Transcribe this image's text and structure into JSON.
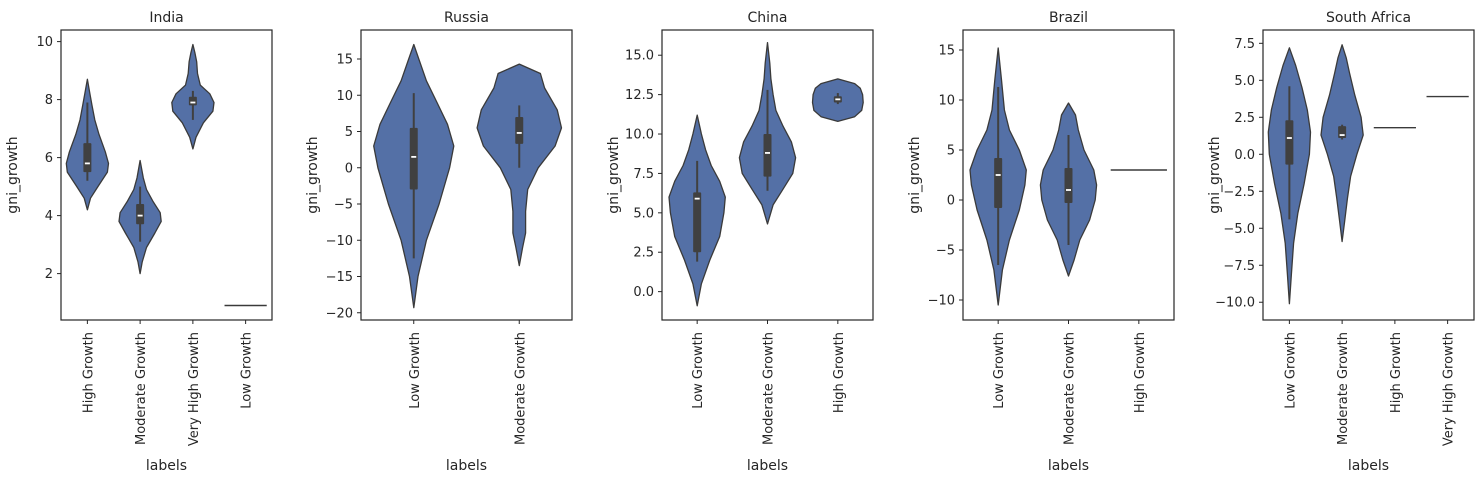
{
  "style": {
    "violin_fill": "#5470a6",
    "violin_edge": "#3a3a3a",
    "box_color": "#404040",
    "median_color": "#ffffff"
  },
  "chart_data": [
    {
      "type": "violin",
      "title": "India",
      "xlabel": "labels",
      "ylabel": "gni_growth",
      "ylim": [
        0.4,
        10.4
      ],
      "yticks": [
        2,
        4,
        6,
        8,
        10
      ],
      "ytick_labels": [
        "2",
        "4",
        "6",
        "8",
        "10"
      ],
      "categories": [
        "High Growth",
        "Moderate Growth",
        "Very High Growth",
        "Low Growth"
      ],
      "violins": [
        {
          "lo": 4.2,
          "hi": 8.7,
          "q1": 5.5,
          "median": 5.8,
          "q3": 6.5,
          "wlo": 5.2,
          "whi": 7.9,
          "single": false,
          "profile": [
            [
              4.2,
              0.0
            ],
            [
              4.6,
              0.15
            ],
            [
              5.0,
              0.5
            ],
            [
              5.5,
              0.95
            ],
            [
              5.8,
              1.0
            ],
            [
              6.2,
              0.85
            ],
            [
              6.8,
              0.55
            ],
            [
              7.3,
              0.35
            ],
            [
              7.8,
              0.22
            ],
            [
              8.2,
              0.12
            ],
            [
              8.7,
              0.0
            ]
          ]
        },
        {
          "lo": 2.0,
          "hi": 5.9,
          "q1": 3.7,
          "median": 4.0,
          "q3": 4.4,
          "wlo": 3.1,
          "whi": 5.0,
          "single": false,
          "profile": [
            [
              2.0,
              0.0
            ],
            [
              2.4,
              0.1
            ],
            [
              2.9,
              0.3
            ],
            [
              3.4,
              0.7
            ],
            [
              3.8,
              1.0
            ],
            [
              4.1,
              0.95
            ],
            [
              4.5,
              0.6
            ],
            [
              4.9,
              0.3
            ],
            [
              5.3,
              0.15
            ],
            [
              5.9,
              0.0
            ]
          ]
        },
        {
          "lo": 6.3,
          "hi": 9.9,
          "q1": 7.8,
          "median": 7.9,
          "q3": 8.1,
          "wlo": 7.3,
          "whi": 8.3,
          "single": false,
          "profile": [
            [
              6.3,
              0.0
            ],
            [
              6.7,
              0.15
            ],
            [
              7.2,
              0.5
            ],
            [
              7.6,
              0.95
            ],
            [
              7.9,
              1.0
            ],
            [
              8.2,
              0.8
            ],
            [
              8.5,
              0.35
            ],
            [
              8.9,
              0.22
            ],
            [
              9.3,
              0.18
            ],
            [
              9.6,
              0.1
            ],
            [
              9.9,
              0.0
            ]
          ]
        },
        {
          "lo": 0.9,
          "hi": 0.9,
          "q1": 0.9,
          "median": 0.9,
          "q3": 0.9,
          "wlo": 0.9,
          "whi": 0.9,
          "single": true,
          "profile": []
        }
      ]
    },
    {
      "type": "violin",
      "title": "Russia",
      "xlabel": "labels",
      "ylabel": "gni_growth",
      "ylim": [
        -21,
        19
      ],
      "yticks": [
        -20,
        -15,
        -10,
        -5,
        0,
        5,
        10,
        15
      ],
      "ytick_labels": [
        "−20",
        "−15",
        "−10",
        "−5",
        "0",
        "5",
        "10",
        "15"
      ],
      "categories": [
        "Low Growth",
        "Moderate Growth"
      ],
      "violins": [
        {
          "lo": -19.3,
          "hi": 17.0,
          "q1": -3.0,
          "median": 1.5,
          "q3": 5.5,
          "wlo": -12.5,
          "whi": 10.3,
          "single": false,
          "profile": [
            [
              -19.3,
              0.0
            ],
            [
              -15,
              0.1
            ],
            [
              -10,
              0.3
            ],
            [
              -5,
              0.6
            ],
            [
              0,
              0.85
            ],
            [
              3,
              0.95
            ],
            [
              6,
              0.8
            ],
            [
              9,
              0.55
            ],
            [
              12,
              0.3
            ],
            [
              15,
              0.12
            ],
            [
              17,
              0.0
            ]
          ]
        },
        {
          "lo": -13.5,
          "hi": 14.3,
          "q1": 3.3,
          "median": 4.8,
          "q3": 7.0,
          "wlo": 0.0,
          "whi": 8.6,
          "single": false,
          "profile": [
            [
              -13.5,
              0.0
            ],
            [
              -11,
              0.08
            ],
            [
              -9,
              0.15
            ],
            [
              -6,
              0.15
            ],
            [
              -3,
              0.2
            ],
            [
              0,
              0.45
            ],
            [
              3,
              0.85
            ],
            [
              5.5,
              1.0
            ],
            [
              8,
              0.9
            ],
            [
              11,
              0.6
            ],
            [
              13,
              0.5
            ],
            [
              14.3,
              0.0
            ]
          ]
        }
      ]
    },
    {
      "type": "violin",
      "title": "China",
      "xlabel": "labels",
      "ylabel": "gni_growth",
      "ylim": [
        -1.8,
        16.6
      ],
      "yticks": [
        0.0,
        2.5,
        5.0,
        7.5,
        10.0,
        12.5,
        15.0
      ],
      "ytick_labels": [
        "0.0",
        "2.5",
        "5.0",
        "7.5",
        "10.0",
        "12.5",
        "15.0"
      ],
      "categories": [
        "Low Growth",
        "Moderate Growth",
        "High Growth"
      ],
      "violins": [
        {
          "lo": -0.9,
          "hi": 11.2,
          "q1": 2.5,
          "median": 5.9,
          "q3": 6.3,
          "wlo": 1.9,
          "whi": 8.3,
          "single": false,
          "profile": [
            [
              -0.9,
              0.0
            ],
            [
              0.5,
              0.15
            ],
            [
              2,
              0.45
            ],
            [
              3.5,
              0.8
            ],
            [
              5,
              0.95
            ],
            [
              6,
              1.0
            ],
            [
              7,
              0.8
            ],
            [
              8,
              0.5
            ],
            [
              9,
              0.3
            ],
            [
              10,
              0.15
            ],
            [
              11.2,
              0.0
            ]
          ]
        },
        {
          "lo": 4.3,
          "hi": 15.8,
          "q1": 7.3,
          "median": 8.8,
          "q3": 10.0,
          "wlo": 6.4,
          "whi": 12.8,
          "single": false,
          "profile": [
            [
              4.3,
              0.0
            ],
            [
              5.5,
              0.2
            ],
            [
              6.5,
              0.55
            ],
            [
              7.5,
              0.9
            ],
            [
              8.5,
              1.0
            ],
            [
              9.5,
              0.85
            ],
            [
              10.5,
              0.55
            ],
            [
              11.5,
              0.3
            ],
            [
              12.5,
              0.2
            ],
            [
              13.5,
              0.12
            ],
            [
              14.5,
              0.08
            ],
            [
              15.8,
              0.0
            ]
          ]
        },
        {
          "lo": 10.8,
          "hi": 13.5,
          "q1": 12.0,
          "median": 12.2,
          "q3": 12.4,
          "wlo": 11.9,
          "whi": 12.6,
          "single": false,
          "profile": [
            [
              10.8,
              0.0
            ],
            [
              11.1,
              0.6
            ],
            [
              11.5,
              0.85
            ],
            [
              12.0,
              0.9
            ],
            [
              12.5,
              0.88
            ],
            [
              12.9,
              0.8
            ],
            [
              13.2,
              0.6
            ],
            [
              13.5,
              0.0
            ]
          ]
        }
      ]
    },
    {
      "type": "violin",
      "title": "Brazil",
      "xlabel": "labels",
      "ylabel": "gni_growth",
      "ylim": [
        -12,
        17
      ],
      "yticks": [
        -10,
        -5,
        0,
        5,
        10,
        15
      ],
      "ytick_labels": [
        "−10",
        "−5",
        "0",
        "5",
        "10",
        "15"
      ],
      "categories": [
        "Low Growth",
        "Moderate Growth",
        "High Growth"
      ],
      "violins": [
        {
          "lo": -10.5,
          "hi": 15.2,
          "q1": -0.8,
          "median": 2.5,
          "q3": 4.2,
          "wlo": -6.5,
          "whi": 11.3,
          "single": false,
          "profile": [
            [
              -10.5,
              0.0
            ],
            [
              -7,
              0.15
            ],
            [
              -4,
              0.4
            ],
            [
              -1,
              0.75
            ],
            [
              1.5,
              0.95
            ],
            [
              3,
              1.0
            ],
            [
              5,
              0.75
            ],
            [
              7,
              0.4
            ],
            [
              9,
              0.22
            ],
            [
              12,
              0.12
            ],
            [
              15.2,
              0.0
            ]
          ]
        },
        {
          "lo": -7.6,
          "hi": 9.7,
          "q1": -0.3,
          "median": 1.0,
          "q3": 3.2,
          "wlo": -4.5,
          "whi": 6.5,
          "single": false,
          "profile": [
            [
              -7.6,
              0.0
            ],
            [
              -6,
              0.2
            ],
            [
              -4,
              0.4
            ],
            [
              -2,
              0.75
            ],
            [
              0,
              0.95
            ],
            [
              1.5,
              1.0
            ],
            [
              3,
              0.9
            ],
            [
              5,
              0.55
            ],
            [
              7,
              0.35
            ],
            [
              8.5,
              0.25
            ],
            [
              9.7,
              0.0
            ]
          ]
        },
        {
          "lo": 3.0,
          "hi": 3.0,
          "q1": 3.0,
          "median": 3.0,
          "q3": 3.0,
          "wlo": 3.0,
          "whi": 3.0,
          "single": true,
          "profile": []
        }
      ]
    },
    {
      "type": "violin",
      "title": "South Africa",
      "xlabel": "labels",
      "ylabel": "gni_growth",
      "ylim": [
        -11.2,
        8.4
      ],
      "yticks": [
        -10.0,
        -7.5,
        -5.0,
        -2.5,
        0.0,
        2.5,
        5.0,
        7.5
      ],
      "ytick_labels": [
        "−10.0",
        "−7.5",
        "−5.0",
        "−2.5",
        "0.0",
        "2.5",
        "5.0",
        "7.5"
      ],
      "categories": [
        "Low Growth",
        "Moderate Growth",
        "High Growth",
        "Very High Growth"
      ],
      "violins": [
        {
          "lo": -10.1,
          "hi": 7.2,
          "q1": -0.7,
          "median": 1.1,
          "q3": 2.3,
          "wlo": -4.4,
          "whi": 4.6,
          "single": false,
          "profile": [
            [
              -10.1,
              0.0
            ],
            [
              -8,
              0.1
            ],
            [
              -6,
              0.2
            ],
            [
              -4,
              0.4
            ],
            [
              -2,
              0.7
            ],
            [
              0,
              0.95
            ],
            [
              1.5,
              1.0
            ],
            [
              3,
              0.85
            ],
            [
              4.5,
              0.6
            ],
            [
              6,
              0.3
            ],
            [
              7.2,
              0.0
            ]
          ]
        },
        {
          "lo": -5.9,
          "hi": 7.4,
          "q1": 1.1,
          "median": 1.3,
          "q3": 1.9,
          "wlo": 1.0,
          "whi": 2.0,
          "single": false,
          "profile": [
            [
              -5.9,
              0.0
            ],
            [
              -4.5,
              0.12
            ],
            [
              -3,
              0.25
            ],
            [
              -1.5,
              0.4
            ],
            [
              0,
              0.7
            ],
            [
              1.3,
              1.0
            ],
            [
              2.5,
              0.9
            ],
            [
              4,
              0.6
            ],
            [
              5.5,
              0.35
            ],
            [
              6.5,
              0.2
            ],
            [
              7.4,
              0.0
            ]
          ]
        },
        {
          "lo": 1.8,
          "hi": 1.8,
          "q1": 1.8,
          "median": 1.8,
          "q3": 1.8,
          "wlo": 1.8,
          "whi": 1.8,
          "single": true,
          "profile": []
        },
        {
          "lo": 3.9,
          "hi": 3.9,
          "q1": 3.9,
          "median": 3.9,
          "q3": 3.9,
          "wlo": 3.9,
          "whi": 3.9,
          "single": true,
          "profile": []
        }
      ]
    }
  ]
}
